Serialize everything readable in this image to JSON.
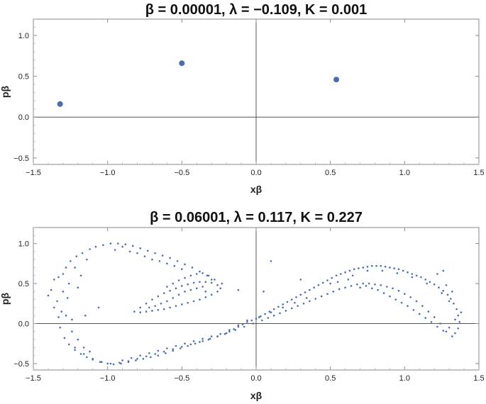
{
  "chart_data": [
    {
      "type": "scatter",
      "title": "β = 0.00001,  λ = −0.109,  K = 0.001",
      "xlabel": "xβ",
      "ylabel": "pβ",
      "xlim": [
        -1.5,
        1.5
      ],
      "ylim": [
        -0.58,
        1.2
      ],
      "xticks": [
        "−1.5",
        "−1.0",
        "−0.5",
        "0.0",
        "0.5",
        "1.0",
        "1.5"
      ],
      "yticks": [
        "−0.5",
        "0.0",
        "0.5",
        "1.0"
      ],
      "grid": false,
      "marker_color": "#4a6fb0",
      "points": [
        [
          -1.32,
          0.16
        ],
        [
          -0.5,
          0.66
        ],
        [
          0.54,
          0.46
        ]
      ]
    },
    {
      "type": "scatter",
      "title": "β = 0.06001,  λ = 0.117,  K = 0.227",
      "xlabel": "xβ",
      "ylabel": "pβ",
      "xlim": [
        -1.5,
        1.5
      ],
      "ylim": [
        -0.58,
        1.2
      ],
      "xticks": [
        "−1.5",
        "−1.0",
        "−0.5",
        "0.0",
        "0.5",
        "1.0",
        "1.5"
      ],
      "yticks": [
        "−0.5",
        "0.0",
        "0.5",
        "1.0"
      ],
      "grid": false,
      "marker_color": "#4a6fb0",
      "points": [
        [
          -1.38,
          0.42
        ],
        [
          -1.36,
          0.55
        ],
        [
          -1.34,
          0.28
        ],
        [
          -1.33,
          0.08
        ],
        [
          -1.32,
          -0.05
        ],
        [
          -1.31,
          0.15
        ],
        [
          -1.3,
          0.62
        ],
        [
          -1.29,
          -0.18
        ],
        [
          -1.28,
          0.7
        ],
        [
          -1.27,
          0.32
        ],
        [
          -1.26,
          -0.26
        ],
        [
          -1.25,
          0.78
        ],
        [
          -1.24,
          0.05
        ],
        [
          -1.22,
          -0.33
        ],
        [
          -1.21,
          0.84
        ],
        [
          -1.2,
          0.45
        ],
        [
          -1.18,
          -0.38
        ],
        [
          -1.17,
          0.88
        ],
        [
          -1.15,
          0.1
        ],
        [
          -1.14,
          -0.42
        ],
        [
          -1.12,
          0.93
        ],
        [
          -1.1,
          -0.45
        ],
        [
          -1.08,
          0.96
        ],
        [
          -1.06,
          0.2
        ],
        [
          -1.05,
          -0.48
        ],
        [
          -1.03,
          0.98
        ],
        [
          -1.0,
          -0.5
        ],
        [
          -0.98,
          1.0
        ],
        [
          -0.96,
          -0.51
        ],
        [
          -0.93,
          1.0
        ],
        [
          -0.91,
          -0.5
        ],
        [
          -0.88,
          0.99
        ],
        [
          -0.86,
          -0.48
        ],
        [
          -0.83,
          0.97
        ],
        [
          -0.81,
          -0.46
        ],
        [
          -0.78,
          0.94
        ],
        [
          -0.76,
          -0.44
        ],
        [
          -0.73,
          0.91
        ],
        [
          -0.71,
          -0.42
        ],
        [
          -0.68,
          0.88
        ],
        [
          -0.66,
          -0.4
        ],
        [
          -0.63,
          0.85
        ],
        [
          -0.61,
          -0.37
        ],
        [
          -0.58,
          0.82
        ],
        [
          -0.56,
          -0.34
        ],
        [
          -0.53,
          0.78
        ],
        [
          -0.51,
          -0.31
        ],
        [
          -0.48,
          0.74
        ],
        [
          -0.46,
          -0.28
        ],
        [
          -0.43,
          0.7
        ],
        [
          -0.41,
          -0.25
        ],
        [
          -0.38,
          0.65
        ],
        [
          -0.36,
          -0.22
        ],
        [
          -0.33,
          0.6
        ],
        [
          -0.31,
          -0.19
        ],
        [
          -0.28,
          0.55
        ],
        [
          -0.26,
          -0.16
        ],
        [
          -0.23,
          0.5
        ],
        [
          -0.21,
          -0.13
        ],
        [
          -0.18,
          -0.1
        ],
        [
          -0.15,
          -0.07
        ],
        [
          -0.12,
          -0.04
        ],
        [
          -0.09,
          -0.01
        ],
        [
          -0.06,
          0.02
        ],
        [
          -0.03,
          0.04
        ],
        [
          0.0,
          0.06
        ],
        [
          0.03,
          0.09
        ],
        [
          0.06,
          0.12
        ],
        [
          0.09,
          0.15
        ],
        [
          0.12,
          0.18
        ],
        [
          0.15,
          0.21
        ],
        [
          0.18,
          0.24
        ],
        [
          0.21,
          0.27
        ],
        [
          0.24,
          0.3
        ],
        [
          0.27,
          0.33
        ],
        [
          0.3,
          0.36
        ],
        [
          0.33,
          0.39
        ],
        [
          0.36,
          0.42
        ],
        [
          0.39,
          0.45
        ],
        [
          0.42,
          0.48
        ],
        [
          0.45,
          0.51
        ],
        [
          0.48,
          0.54
        ],
        [
          0.51,
          0.57
        ],
        [
          0.54,
          0.6
        ],
        [
          0.57,
          0.62
        ],
        [
          0.6,
          0.64
        ],
        [
          0.63,
          0.66
        ],
        [
          0.66,
          0.68
        ],
        [
          0.69,
          0.69
        ],
        [
          0.72,
          0.7
        ],
        [
          0.75,
          0.71
        ],
        [
          0.78,
          0.72
        ],
        [
          0.81,
          0.72
        ],
        [
          0.84,
          0.72
        ],
        [
          0.87,
          0.71
        ],
        [
          0.9,
          0.7
        ],
        [
          0.93,
          0.69
        ],
        [
          0.96,
          0.68
        ],
        [
          0.99,
          0.66
        ],
        [
          1.02,
          0.64
        ],
        [
          1.05,
          0.62
        ],
        [
          1.08,
          0.6
        ],
        [
          1.11,
          0.58
        ],
        [
          1.14,
          0.55
        ],
        [
          1.17,
          0.52
        ],
        [
          1.2,
          0.49
        ],
        [
          1.23,
          0.45
        ],
        [
          1.26,
          0.41
        ],
        [
          1.29,
          0.36
        ],
        [
          1.31,
          0.31
        ],
        [
          1.33,
          0.25
        ],
        [
          1.35,
          0.18
        ],
        [
          1.36,
          0.1
        ],
        [
          1.37,
          0.02
        ],
        [
          1.36,
          -0.06
        ],
        [
          1.34,
          -0.12
        ],
        [
          1.32,
          -0.16
        ],
        [
          1.28,
          -0.1
        ],
        [
          1.24,
          0.0
        ],
        [
          1.2,
          0.08
        ],
        [
          1.16,
          0.15
        ],
        [
          1.12,
          0.22
        ],
        [
          1.08,
          0.28
        ],
        [
          1.04,
          0.33
        ],
        [
          1.0,
          0.37
        ],
        [
          0.96,
          0.41
        ],
        [
          0.92,
          0.44
        ],
        [
          0.88,
          0.46
        ],
        [
          0.84,
          0.48
        ],
        [
          0.8,
          0.49
        ],
        [
          0.76,
          0.5
        ],
        [
          0.72,
          0.5
        ],
        [
          0.68,
          0.49
        ],
        [
          0.64,
          0.47
        ],
        [
          0.6,
          0.45
        ],
        [
          0.56,
          0.43
        ],
        [
          0.52,
          0.4
        ],
        [
          0.48,
          0.37
        ],
        [
          0.44,
          0.34
        ],
        [
          0.4,
          0.31
        ],
        [
          0.36,
          0.28
        ],
        [
          0.32,
          0.25
        ],
        [
          0.28,
          0.22
        ],
        [
          0.24,
          0.19
        ],
        [
          0.2,
          0.16
        ],
        [
          0.16,
          0.13
        ],
        [
          0.12,
          0.1
        ],
        [
          0.08,
          0.07
        ],
        [
          0.04,
          0.04
        ],
        [
          -0.02,
          0.0
        ],
        [
          -0.08,
          -0.04
        ],
        [
          -0.14,
          -0.08
        ],
        [
          -0.2,
          -0.12
        ],
        [
          -0.26,
          -0.16
        ],
        [
          -0.32,
          -0.2
        ],
        [
          -0.38,
          -0.23
        ],
        [
          -0.44,
          -0.26
        ],
        [
          -0.5,
          -0.29
        ],
        [
          -0.56,
          -0.32
        ],
        [
          -0.62,
          -0.35
        ],
        [
          -0.68,
          -0.38
        ],
        [
          -0.74,
          -0.41
        ],
        [
          -0.8,
          -0.44
        ],
        [
          -0.86,
          -0.47
        ],
        [
          -0.92,
          -0.49
        ],
        [
          -0.98,
          -0.5
        ],
        [
          -1.04,
          -0.48
        ],
        [
          -1.1,
          -0.44
        ],
        [
          -1.16,
          -0.38
        ],
        [
          -1.22,
          -0.3
        ],
        [
          -0.82,
          0.15
        ],
        [
          -0.78,
          0.2
        ],
        [
          -0.74,
          0.25
        ],
        [
          -0.7,
          0.3
        ],
        [
          -0.66,
          0.34
        ],
        [
          -0.62,
          0.38
        ],
        [
          -0.58,
          0.41
        ],
        [
          -0.54,
          0.44
        ],
        [
          -0.5,
          0.47
        ],
        [
          -0.46,
          0.49
        ],
        [
          -0.42,
          0.51
        ],
        [
          -0.38,
          0.52
        ],
        [
          -0.34,
          0.52
        ],
        [
          -0.3,
          0.51
        ],
        [
          -0.26,
          0.48
        ],
        [
          -0.24,
          0.44
        ],
        [
          -0.26,
          0.4
        ],
        [
          -0.3,
          0.36
        ],
        [
          -0.34,
          0.33
        ],
        [
          -0.38,
          0.3
        ],
        [
          -0.42,
          0.28
        ],
        [
          -0.46,
          0.26
        ],
        [
          -0.5,
          0.24
        ],
        [
          -0.54,
          0.22
        ],
        [
          -0.58,
          0.2
        ],
        [
          -0.62,
          0.18
        ],
        [
          -0.66,
          0.17
        ],
        [
          -0.7,
          0.16
        ],
        [
          -0.74,
          0.15
        ],
        [
          -0.78,
          0.14
        ],
        [
          -0.6,
          0.46
        ],
        [
          -0.56,
          0.5
        ],
        [
          -0.52,
          0.54
        ],
        [
          -0.48,
          0.57
        ],
        [
          -0.44,
          0.6
        ],
        [
          -0.4,
          0.62
        ],
        [
          -0.36,
          0.63
        ],
        [
          -0.32,
          0.6
        ],
        [
          -0.3,
          0.55
        ],
        [
          -0.52,
          0.36
        ],
        [
          -0.56,
          0.32
        ],
        [
          -0.6,
          0.28
        ],
        [
          -0.64,
          0.25
        ],
        [
          -0.68,
          0.22
        ],
        [
          -0.72,
          0.2
        ],
        [
          -0.48,
          0.4
        ],
        [
          -0.44,
          0.42
        ],
        [
          -0.4,
          0.44
        ],
        [
          -0.36,
          0.46
        ],
        [
          -0.34,
          0.4
        ],
        [
          0.1,
          0.78
        ],
        [
          0.3,
          0.55
        ],
        [
          -0.12,
          0.42
        ],
        [
          0.05,
          0.4
        ],
        [
          1.22,
          0.62
        ],
        [
          1.26,
          0.66
        ],
        [
          0.62,
          0.55
        ],
        [
          -1.4,
          0.35
        ],
        [
          -1.36,
          0.2
        ],
        [
          -1.33,
          0.58
        ],
        [
          -1.3,
          0.4
        ],
        [
          -1.28,
          0.1
        ],
        [
          -1.26,
          0.5
        ],
        [
          -1.24,
          -0.1
        ],
        [
          -1.22,
          0.7
        ],
        [
          -1.2,
          -0.2
        ],
        [
          -1.18,
          0.6
        ],
        [
          -1.16,
          -0.3
        ],
        [
          -1.14,
          0.8
        ],
        [
          -1.12,
          -0.35
        ],
        [
          -0.95,
          0.92
        ],
        [
          -0.9,
          0.96
        ],
        [
          -0.85,
          0.9
        ],
        [
          -0.8,
          0.88
        ],
        [
          -0.75,
          0.84
        ],
        [
          -0.7,
          0.8
        ],
        [
          -0.65,
          0.78
        ],
        [
          -0.6,
          0.75
        ],
        [
          -0.55,
          0.72
        ],
        [
          -0.5,
          0.68
        ],
        [
          0.7,
          0.45
        ],
        [
          0.74,
          0.47
        ],
        [
          0.78,
          0.44
        ],
        [
          0.82,
          0.42
        ],
        [
          0.86,
          0.38
        ],
        [
          0.9,
          0.34
        ],
        [
          0.94,
          0.3
        ],
        [
          0.98,
          0.26
        ],
        [
          1.02,
          0.22
        ],
        [
          1.06,
          0.17
        ],
        [
          1.1,
          0.12
        ],
        [
          1.14,
          0.07
        ],
        [
          1.18,
          0.02
        ],
        [
          1.22,
          -0.04
        ],
        [
          1.26,
          -0.09
        ],
        [
          1.3,
          -0.05
        ],
        [
          1.34,
          0.05
        ],
        [
          1.38,
          0.14
        ],
        [
          1.32,
          0.4
        ],
        [
          1.28,
          0.48
        ],
        [
          0.5,
          0.5
        ],
        [
          0.55,
          0.52
        ],
        [
          0.65,
          0.6
        ],
        [
          0.75,
          0.66
        ],
        [
          0.85,
          0.66
        ],
        [
          0.95,
          0.63
        ],
        [
          1.05,
          0.58
        ],
        [
          1.15,
          0.5
        ],
        [
          1.25,
          0.38
        ],
        [
          1.3,
          0.28
        ],
        [
          -0.9,
          -0.46
        ],
        [
          -0.84,
          -0.43
        ],
        [
          -0.78,
          -0.4
        ],
        [
          -0.72,
          -0.37
        ],
        [
          -0.66,
          -0.34
        ],
        [
          -0.6,
          -0.31
        ],
        [
          -0.54,
          -0.28
        ],
        [
          -0.48,
          -0.25
        ],
        [
          -0.42,
          -0.22
        ],
        [
          -0.36,
          -0.19
        ],
        [
          -0.3,
          -0.16
        ],
        [
          -0.24,
          -0.13
        ],
        [
          -0.18,
          -0.08
        ],
        [
          -0.12,
          -0.02
        ],
        [
          -0.06,
          0.04
        ],
        [
          0.02,
          0.08
        ],
        [
          0.1,
          0.14
        ],
        [
          0.18,
          0.2
        ],
        [
          0.26,
          0.26
        ],
        [
          0.34,
          0.32
        ]
      ]
    }
  ]
}
